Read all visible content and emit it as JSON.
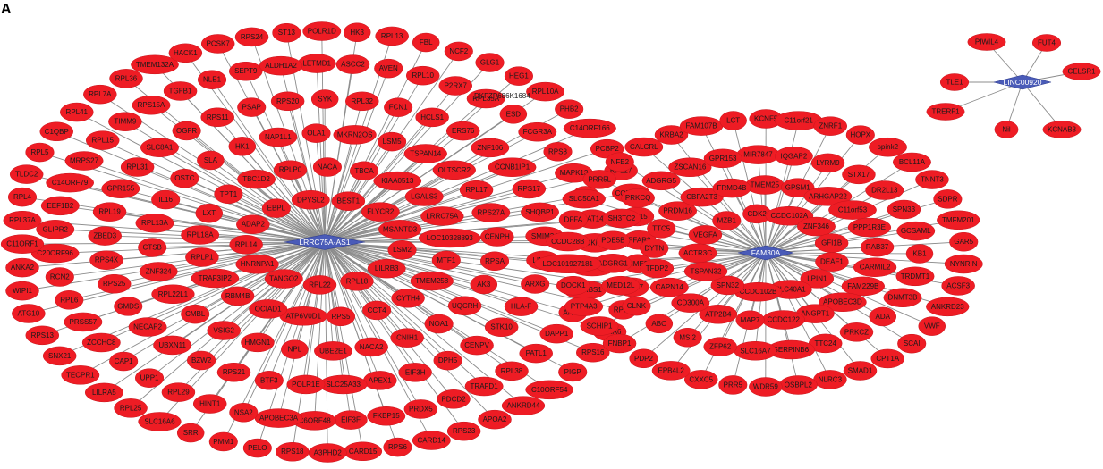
{
  "figure": {
    "panel_letter": "A"
  },
  "colors": {
    "gene_node": "#ee1c24",
    "lncrna_hub": "#4a5bb8",
    "edge": "#8c8c8c"
  },
  "networks": [
    {
      "hub": "LRRC75A-AS1",
      "genes": [
        "DPYSL2",
        "BEST1",
        "FLYCR2",
        "MSANTD3",
        "LSM2",
        "LILRB3",
        "RPL18",
        "RPL22",
        "TANGO2",
        "HNRNPA1",
        "RPL14",
        "ADAP2",
        "EBPL",
        "NACA",
        "TBCA",
        "KIAA0513",
        "LGALS3",
        "LRRC75A",
        "LOC10328893",
        "MTF1",
        "TMEM258",
        "CYTH4",
        "CCT4",
        "RPS5",
        "ATP6V0D1",
        "OCIAD1",
        "RBM4B",
        "TRAF3IP2",
        "RPLP1",
        "RPL18A",
        "LXT",
        "TPT1",
        "TBC1D2",
        "RPLP0",
        "OLA1",
        "MKRN2OS",
        "LSM5",
        "TSPAN14",
        "OLTSCR2",
        "RPL17",
        "RPS27A",
        "CENPH",
        "RPSA",
        "AK3",
        "UQCRH",
        "NOA1",
        "CNIH1",
        "NACA2",
        "UBE2E1",
        "NPL",
        "HMGN1",
        "VSIG2",
        "CMBL",
        "RPL22L1",
        "ZNF324",
        "CTSB",
        "RPL13A",
        "IL16",
        "OSTC",
        "SLA",
        "HK1",
        "NAP1L1",
        "SYK",
        "RPL32",
        "FCN1",
        "HCLS1",
        "ERS76",
        "ZNF106",
        "CCNB1IP1",
        "RPS17",
        "SHQBP1",
        "SMIM24",
        "LIMK2",
        "ARXG",
        "HLA-F",
        "STK10",
        "CENPV",
        "DPH5",
        "EIF3H",
        "APEX1",
        "SLC25A33",
        "POLR1E",
        "BTF3",
        "RPS21",
        "BZW2",
        "UBXN11",
        "NECAP2",
        "GMDS",
        "RPS25",
        "RPS4X",
        "ZBED3",
        "RPL19",
        "GPR155",
        "RPL31",
        "SLC8A1",
        "OGFR",
        "RPS11",
        "PSAP",
        "RPS20",
        "LETMD1",
        "ASCC2",
        "AVEN",
        "RPL10",
        "P2RX7",
        "RPL35A",
        "ESD",
        "FCGR3A",
        "RPS8",
        "MAPK13",
        "ILK",
        "NAT14",
        "CDKN2B",
        "C6ORF203",
        "KHDRBS1",
        "AHCY",
        "DAPP1",
        "PATL1",
        "RPL38",
        "TRAFD1",
        "PDCD2",
        "PRDX5",
        "FKBP15",
        "EIF3F",
        "C6ORF48",
        "APOBEC3A",
        "NSA2",
        "HINT1",
        "RPL29",
        "UPP1",
        "CAP1",
        "ZCCHC8",
        "PRSS57",
        "RPL6",
        "RCN2",
        "C20ORF96",
        "GLIPR2",
        "EEF1B2",
        "C14ORF79",
        "MRPS27",
        "RPL15",
        "TIMM9",
        "RPS15A",
        "TGFB1",
        "NLE1",
        "SEPT9",
        "ALDH1A2",
        "POLR1D",
        "HK3",
        "RPL13",
        "FBL",
        "NCF2",
        "GLG1",
        "HEG1",
        "RPL10A",
        "PHB2",
        "C14ORF166",
        "PCBP2",
        "RPL27",
        "COMMD6",
        "ISG15",
        "FFAR2",
        "NME2",
        "RPL37",
        "RPS7",
        "ULRA6",
        "RPS16",
        "PIGP",
        "C10ORF54",
        "ANKRD44",
        "APOA2",
        "RPS23",
        "CARD14",
        "RPS6",
        "CARD15",
        "A3PHD2",
        "RPS18",
        "PELO",
        "PMM1",
        "SRR",
        "SLC16A6",
        "RPL25",
        "LILRA5",
        "TECPR1",
        "SNX21",
        "RPS13",
        "ATG10",
        "WIPI1",
        "ANKA2",
        "C11ORF1",
        "RPL37A",
        "RPL4",
        "TLDC2",
        "RPL5",
        "C1QBP",
        "RPL41",
        "RPL7A",
        "RPL36",
        "TMEM132A",
        "HACK1",
        "PCSK7",
        "RPS24",
        "ST13"
      ]
    },
    {
      "hub": "FAM30A",
      "genes": [
        "CDK2",
        "CCDC102A",
        "ZNF346",
        "GFI1B",
        "DEAF1",
        "LPIN1",
        "SLC40A1",
        "CCDC102B",
        "SPN32",
        "TSPAN32",
        "ACTR3C",
        "VEGFA",
        "MZB1",
        "TMEM25",
        "GPSM1",
        "ARHGAP22",
        "C11orf53",
        "PPP1R3E",
        "RAB37",
        "CARMIL2",
        "FAM229B",
        "APOBEC3D",
        "ANGPT1",
        "CCDC122",
        "MAP7",
        "ATP2B4",
        "CD300A",
        "CAPN14",
        "TFDP2",
        "DYTN",
        "TTC5",
        "PRDM16",
        "CBFA2T3",
        "FRMD4B",
        "MIR7847",
        "IQGAP2",
        "LYRM9",
        "STX17",
        "DR2L13",
        "SPN33",
        "GCSAML",
        "KB1",
        "TRDMT1",
        "DNMT3B",
        "ADA",
        "PRKCZ",
        "TTC24",
        "SERPINB6",
        "SLC16A7",
        "ZFP62",
        "MSI2",
        "ABO",
        "CLNK",
        "MED12L",
        "ADGRG1",
        "PDE5B",
        "SH3TC2",
        "PRKCQ",
        "ADGRG5",
        "ZSCAN16",
        "GPR153",
        "KCNF5",
        "C11orf21",
        "ZNRF1",
        "HOPX",
        "spink2",
        "BCL11A",
        "TNNT3",
        "SDPR",
        "TMFM201",
        "GAR5",
        "NYNRIN",
        "ACSF3",
        "ANKRD23",
        "VWF",
        "SCAI",
        "CPT1A",
        "SMAD1",
        "NLRC3",
        "OSBPL2",
        "WDR59",
        "PRR5",
        "CXXC5",
        "EPB4L2",
        "PDP2",
        "FNBP1",
        "SCHIP1",
        "PTP4A3",
        "DOCK1",
        "LOC101927181",
        "CCDC28B",
        "DFFA",
        "SLC50A1",
        "PRR5L",
        "NFE2",
        "CALCRL",
        "KRBA2",
        "FAM107B",
        "LCT"
      ]
    },
    {
      "hub": "LINC00920",
      "genes": [
        "PIWIL4",
        "FUT4",
        "TLE1",
        "CELSR1",
        "TRERF1",
        "KCNAB3",
        "Nil"
      ]
    }
  ],
  "outside_labels": [
    "DKFZP686K1684"
  ]
}
